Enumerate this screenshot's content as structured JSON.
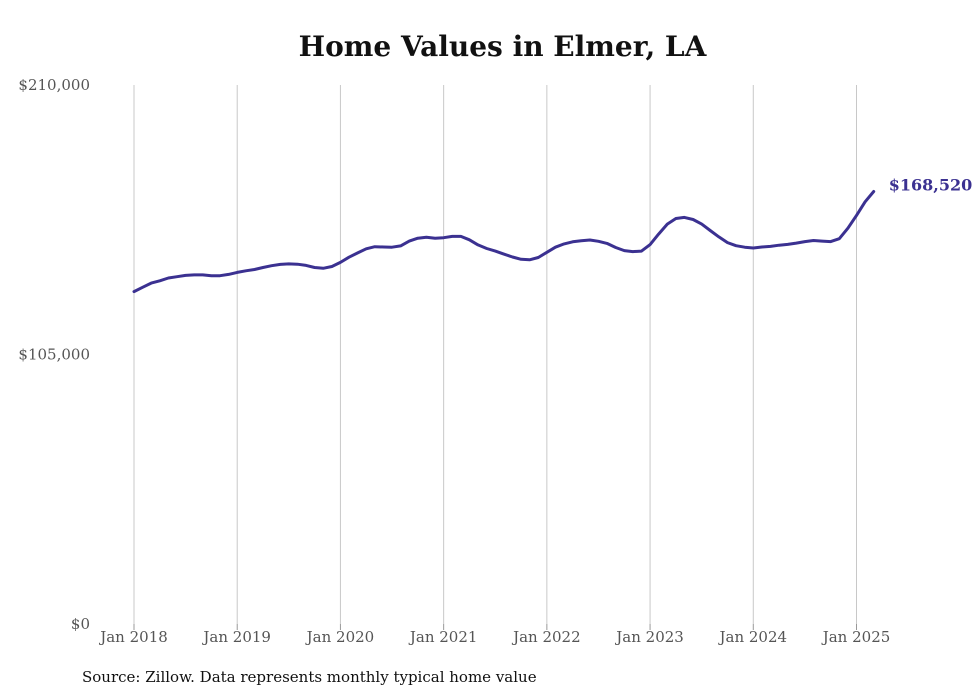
{
  "chart_data": {
    "type": "line",
    "title": "Home Values in Elmer, LA",
    "xlabel": "",
    "ylabel": "",
    "ylim": [
      0,
      210000
    ],
    "yticks": [
      {
        "value": 0,
        "label": "$0"
      },
      {
        "value": 105000,
        "label": "$105,000"
      },
      {
        "value": 210000,
        "label": "$210,000"
      }
    ],
    "xticks": [
      {
        "value": 2018,
        "label": "Jan 2018"
      },
      {
        "value": 2019,
        "label": "Jan 2019"
      },
      {
        "value": 2020,
        "label": "Jan 2020"
      },
      {
        "value": 2021,
        "label": "Jan 2021"
      },
      {
        "value": 2022,
        "label": "Jan 2022"
      },
      {
        "value": 2023,
        "label": "Jan 2023"
      },
      {
        "value": 2024,
        "label": "Jan 2024"
      },
      {
        "value": 2025,
        "label": "Jan 2025"
      }
    ],
    "xlim": [
      2018,
      2025.2
    ],
    "grid": "vertical",
    "line_color": "#3b3191",
    "end_label": "$168,520",
    "series": [
      {
        "x": [
          2018.0,
          2018.083,
          2018.167,
          2018.25,
          2018.333,
          2018.417,
          2018.5,
          2018.583,
          2018.667,
          2018.75,
          2018.833,
          2018.917,
          2019.0,
          2019.083,
          2019.167,
          2019.25,
          2019.333,
          2019.417,
          2019.5,
          2019.583,
          2019.667,
          2019.75,
          2019.833,
          2019.917,
          2020.0,
          2020.083,
          2020.167,
          2020.25,
          2020.333,
          2020.417,
          2020.5,
          2020.583,
          2020.667,
          2020.75,
          2020.833,
          2020.917,
          2021.0,
          2021.083,
          2021.167,
          2021.25,
          2021.333,
          2021.417,
          2021.5,
          2021.583,
          2021.667,
          2021.75,
          2021.833,
          2021.917,
          2022.0,
          2022.083,
          2022.167,
          2022.25,
          2022.333,
          2022.417,
          2022.5,
          2022.583,
          2022.667,
          2022.75,
          2022.833,
          2022.917,
          2023.0,
          2023.083,
          2023.167,
          2023.25,
          2023.333,
          2023.417,
          2023.5,
          2023.583,
          2023.667,
          2023.75,
          2023.833,
          2023.917,
          2024.0,
          2024.083,
          2024.167,
          2024.25,
          2024.333,
          2024.417,
          2024.5,
          2024.583,
          2024.667,
          2024.75,
          2024.833,
          2024.917,
          2025.0,
          2025.083,
          2025.167
        ],
        "values": [
          129500,
          131200,
          132800,
          133700,
          134800,
          135300,
          135800,
          136000,
          136000,
          135700,
          135700,
          136200,
          137000,
          137600,
          138100,
          138900,
          139600,
          140100,
          140300,
          140200,
          139700,
          138900,
          138600,
          139300,
          140900,
          142900,
          144600,
          146200,
          147000,
          146900,
          146800,
          147300,
          149200,
          150300,
          150700,
          150300,
          150500,
          151000,
          151000,
          149700,
          147700,
          146300,
          145300,
          144100,
          143000,
          142100,
          141900,
          142800,
          144800,
          146800,
          148100,
          148900,
          149300,
          149600,
          149100,
          148300,
          146700,
          145500,
          145100,
          145300,
          147800,
          151900,
          155800,
          158000,
          158400,
          157600,
          155800,
          153300,
          150800,
          148600,
          147400,
          146800,
          146500,
          146900,
          147100,
          147600,
          147900,
          148400,
          149000,
          149400,
          149200,
          149000,
          150100,
          154200,
          159200,
          164500,
          168520
        ]
      }
    ]
  },
  "source_note": "Source: Zillow. Data represents monthly typical home value"
}
